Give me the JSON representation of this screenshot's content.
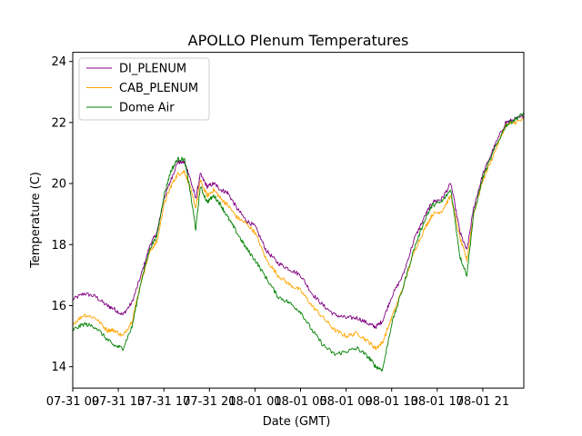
{
  "chart_data": {
    "type": "line",
    "title": "APOLLO Plenum Temperatures",
    "xlabel": "Date (GMT)",
    "ylabel": "Temperature (C)",
    "xlim": [
      0,
      19.8
    ],
    "ylim": [
      13.3,
      24.3
    ],
    "x_ticks": [
      {
        "value": 0,
        "label": "07-31 09"
      },
      {
        "value": 2,
        "label": "07-31 13"
      },
      {
        "value": 4,
        "label": "07-31 17"
      },
      {
        "value": 6,
        "label": "07-31 21"
      },
      {
        "value": 8,
        "label": "08-01 01"
      },
      {
        "value": 10,
        "label": "08-01 05"
      },
      {
        "value": 12,
        "label": "08-01 09"
      },
      {
        "value": 14,
        "label": "08-01 13"
      },
      {
        "value": 16,
        "label": "08-01 17"
      },
      {
        "value": 18,
        "label": "08-01 21"
      }
    ],
    "y_ticks": [
      14,
      16,
      18,
      20,
      22,
      24
    ],
    "legend_position": "top-left",
    "x": [
      0,
      0.5,
      1.0,
      1.5,
      1.8,
      2.2,
      2.6,
      3.0,
      3.4,
      3.7,
      4.0,
      4.3,
      4.6,
      4.9,
      5.1,
      5.4,
      5.6,
      5.9,
      6.2,
      6.5,
      6.8,
      7.2,
      7.6,
      8.0,
      8.5,
      9.0,
      9.5,
      10.0,
      10.5,
      11.0,
      11.5,
      12.0,
      12.5,
      13.0,
      13.3,
      13.6,
      14.0,
      14.5,
      15.0,
      15.5,
      15.8,
      16.2,
      16.6,
      17.0,
      17.3,
      17.6,
      18.0,
      18.5,
      19.0,
      19.4,
      19.8
    ],
    "series": [
      {
        "name": "DI_PLENUM",
        "color": "#800080",
        "values": [
          16.2,
          16.4,
          16.3,
          16.0,
          15.9,
          15.7,
          16.1,
          17.0,
          18.0,
          18.4,
          19.5,
          20.1,
          20.7,
          20.7,
          20.3,
          19.5,
          20.3,
          19.9,
          20.0,
          19.8,
          19.7,
          19.2,
          18.8,
          18.6,
          17.8,
          17.4,
          17.2,
          17.0,
          16.4,
          16.0,
          15.7,
          15.6,
          15.6,
          15.4,
          15.3,
          15.5,
          16.3,
          17.0,
          18.2,
          19.0,
          19.4,
          19.5,
          20.0,
          18.4,
          17.8,
          19.2,
          20.3,
          21.2,
          22.0,
          22.1,
          22.2
        ]
      },
      {
        "name": "CAB_PLENUM",
        "color": "#ffa500",
        "values": [
          15.4,
          15.7,
          15.6,
          15.2,
          15.2,
          15.0,
          15.5,
          16.8,
          17.8,
          18.1,
          19.3,
          19.9,
          20.3,
          20.4,
          20.0,
          19.2,
          20.1,
          19.6,
          19.8,
          19.5,
          19.3,
          18.9,
          18.7,
          18.4,
          17.5,
          17.0,
          16.7,
          16.5,
          16.0,
          15.6,
          15.2,
          15.0,
          15.1,
          14.8,
          14.6,
          14.8,
          15.6,
          16.6,
          17.8,
          18.6,
          19.0,
          19.1,
          19.6,
          18.2,
          17.5,
          19.0,
          20.1,
          21.0,
          21.9,
          22.0,
          22.1
        ]
      },
      {
        "name": "Dome Air",
        "color": "#008000",
        "values": [
          15.2,
          15.4,
          15.3,
          14.9,
          14.7,
          14.6,
          15.3,
          16.8,
          17.9,
          18.3,
          19.6,
          20.4,
          20.8,
          20.8,
          20.0,
          18.5,
          19.9,
          19.4,
          19.6,
          19.3,
          18.9,
          18.4,
          17.9,
          17.5,
          16.9,
          16.3,
          16.1,
          15.8,
          15.2,
          14.7,
          14.4,
          14.5,
          14.6,
          14.3,
          14.0,
          13.9,
          15.4,
          16.6,
          17.9,
          18.9,
          19.3,
          19.4,
          19.8,
          17.6,
          17.0,
          19.0,
          20.2,
          21.1,
          21.9,
          22.1,
          22.3
        ]
      }
    ]
  }
}
